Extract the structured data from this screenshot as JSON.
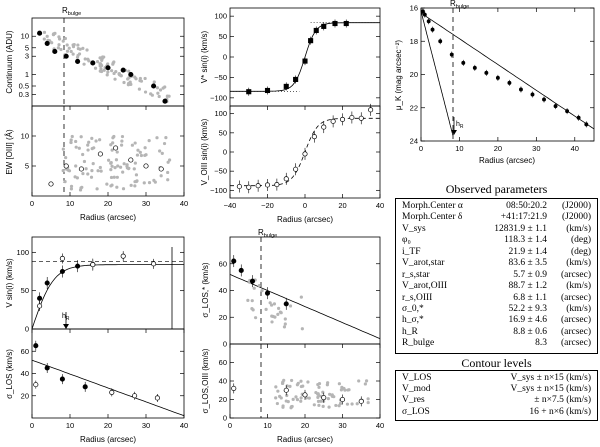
{
  "chart_data": [
    {
      "id": "continuum",
      "type": "scatter",
      "title": "",
      "xlabel": "",
      "ylabel": "Continuum (ADU)",
      "xlim": [
        0,
        40
      ],
      "ylim": [
        0.15,
        30
      ],
      "yscale": "log",
      "ytick_labels": [
        "10",
        "5",
        "3",
        "1",
        "0.5",
        "0.3"
      ],
      "yticks": [
        10,
        5,
        3,
        1,
        0.5,
        0.3
      ],
      "annotation": "R_bulge",
      "annotation_label": "R",
      "annotation_sub": "bulge",
      "marker_x": 8.3,
      "series": [
        {
          "name": "filled",
          "x": [
            2,
            4,
            6,
            9,
            12,
            16,
            20,
            24,
            26,
            32,
            35
          ],
          "y": [
            12,
            6.5,
            4,
            3,
            2.2,
            2,
            1.5,
            1.3,
            1,
            0.5,
            0.2
          ]
        }
      ]
    },
    {
      "id": "ew_oiii",
      "type": "scatter",
      "title": "",
      "xlabel": "Radius (arcsec)",
      "ylabel": "EW [OIII] (Å)",
      "xlim": [
        0,
        40
      ],
      "ylim": [
        0,
        15
      ],
      "yticks": [
        5,
        10
      ],
      "ytick_labels": [
        "5",
        "10"
      ],
      "xticks": [
        0,
        10,
        20,
        30,
        40
      ],
      "xtick_labels": [
        "0",
        "10",
        "20",
        "30",
        "40"
      ],
      "marker_x": 8.3,
      "series": [
        {
          "name": "open",
          "x": [
            5,
            9,
            13,
            18,
            22,
            26,
            30,
            34
          ],
          "y": [
            2,
            5,
            4.5,
            7,
            8,
            6,
            5,
            4.5
          ]
        }
      ]
    },
    {
      "id": "v_star",
      "type": "line",
      "title": "",
      "xlabel": "",
      "ylabel": "V* sin(i) (km/s)",
      "xlim": [
        -40,
        40
      ],
      "ylim": [
        -120,
        120
      ],
      "yticks": [
        -100,
        -50,
        0,
        50,
        100
      ],
      "ytick_labels": [
        "−100",
        "−50",
        "0",
        "50",
        "100"
      ],
      "series": [
        {
          "name": "data",
          "x": [
            -30,
            -20,
            -10,
            -5,
            0,
            3,
            6,
            10,
            16,
            22
          ],
          "y": [
            -85,
            -82,
            -72,
            -55,
            -10,
            40,
            65,
            75,
            82,
            82
          ]
        }
      ]
    },
    {
      "id": "v_oiii",
      "type": "line",
      "title": "",
      "xlabel": "Radius (arcsec)",
      "ylabel": "V_OIII sin(i) (km/s)",
      "xlim": [
        -40,
        40
      ],
      "ylim": [
        -120,
        120
      ],
      "yticks": [
        -100,
        -50,
        0,
        50,
        100
      ],
      "ytick_labels": [
        "−100",
        "−50",
        "0",
        "50",
        "100"
      ],
      "xticks": [
        -40,
        -20,
        0,
        20,
        40
      ],
      "xtick_labels": [
        "−40",
        "−20",
        "0",
        "20",
        "40"
      ],
      "series": [
        {
          "name": "data",
          "x": [
            -35,
            -30,
            -25,
            -20,
            -15,
            -10,
            -5,
            0,
            5,
            10,
            15,
            20,
            25,
            30,
            35
          ],
          "y": [
            -90,
            -92,
            -88,
            -86,
            -85,
            -70,
            -45,
            -5,
            40,
            65,
            80,
            85,
            90,
            88,
            110
          ]
        }
      ]
    },
    {
      "id": "surface_brightness",
      "type": "line",
      "title": "",
      "xlabel": "Radius (arcsec)",
      "ylabel": "μ_K (mag arcsec⁻²)",
      "xlim": [
        0,
        45
      ],
      "ylim": [
        24,
        16
      ],
      "yticks": [
        16,
        18,
        20,
        22,
        24
      ],
      "ytick_labels": [
        "16",
        "18",
        "20",
        "22",
        "24"
      ],
      "xticks": [
        0,
        10,
        20,
        30,
        40
      ],
      "xtick_labels": [
        "0",
        "10",
        "20",
        "30",
        "40"
      ],
      "annotation_label": "R",
      "annotation_sub": "bulge",
      "hr_label": "h",
      "hr_sub": "R",
      "marker_x": 8.3,
      "series": [
        {
          "name": "data",
          "x": [
            0.5,
            1,
            2,
            3,
            5,
            8,
            11,
            14,
            17,
            20,
            23,
            26,
            29,
            32,
            35,
            38,
            41,
            43
          ],
          "y": [
            16.2,
            16.4,
            16.8,
            17.3,
            18,
            18.8,
            19.3,
            19.6,
            19.9,
            20.2,
            20.5,
            20.9,
            21.2,
            21.5,
            21.9,
            22.2,
            22.6,
            23
          ]
        }
      ]
    },
    {
      "id": "v_rot",
      "type": "line",
      "title": "",
      "xlabel": "",
      "ylabel": "V sin(i) (km/s)",
      "xlim": [
        0,
        40
      ],
      "ylim": [
        0,
        120
      ],
      "yticks": [
        0,
        50,
        100
      ],
      "ytick_labels": [
        "0",
        "50",
        "100"
      ],
      "hr_label": "h",
      "hr_sub": "R",
      "series": [
        {
          "name": "filled",
          "x": [
            2,
            4,
            8,
            12,
            16
          ],
          "y": [
            40,
            60,
            75,
            82,
            84
          ]
        },
        {
          "name": "open",
          "x": [
            2,
            8,
            16,
            24,
            32
          ],
          "y": [
            30,
            92,
            84,
            95,
            85
          ]
        }
      ]
    },
    {
      "id": "sigma_los",
      "type": "scatter",
      "title": "",
      "xlabel": "Radius (arcsec)",
      "ylabel": "σ_LOS (km/s)",
      "xlim": [
        0,
        40
      ],
      "ylim": [
        0,
        80
      ],
      "yticks": [
        20,
        40,
        60
      ],
      "ytick_labels": [
        "20",
        "40",
        "60"
      ],
      "xticks": [
        0,
        10,
        20,
        30,
        40
      ],
      "xtick_labels": [
        "0",
        "10",
        "20",
        "30",
        "40"
      ],
      "series": [
        {
          "name": "filled",
          "x": [
            1,
            4,
            8,
            14
          ],
          "y": [
            65,
            45,
            35,
            28
          ]
        },
        {
          "name": "open",
          "x": [
            1,
            21,
            27,
            33
          ],
          "y": [
            30,
            23,
            20,
            18
          ]
        }
      ]
    },
    {
      "id": "sigma_star",
      "type": "scatter",
      "title": "",
      "xlabel": "",
      "ylabel": "σ_LOS,* (km/s)",
      "xlim": [
        0,
        40
      ],
      "ylim": [
        0,
        80
      ],
      "yticks": [
        0,
        20,
        40,
        60
      ],
      "ytick_labels": [
        "0",
        "20",
        "40",
        "60"
      ],
      "annotation_label": "R",
      "annotation_sub": "bulge",
      "marker_x": 8.3,
      "series": [
        {
          "name": "filled",
          "x": [
            1,
            3,
            6,
            10,
            15
          ],
          "y": [
            62,
            55,
            47,
            38,
            30
          ]
        }
      ]
    },
    {
      "id": "sigma_oiii",
      "type": "scatter",
      "title": "",
      "xlabel": "Radius (arcsec)",
      "ylabel": "σ_LOS,OIII (km/s)",
      "xlim": [
        0,
        40
      ],
      "ylim": [
        0,
        80
      ],
      "yticks": [
        0,
        20,
        40,
        60
      ],
      "ytick_labels": [
        "0",
        "20",
        "40",
        "60"
      ],
      "xticks": [
        0,
        10,
        20,
        30,
        40
      ],
      "xtick_labels": [
        "0",
        "10",
        "20",
        "30",
        "40"
      ],
      "marker_x": 8.3,
      "series": [
        {
          "name": "open",
          "x": [
            1,
            15,
            20,
            25,
            30,
            35
          ],
          "y": [
            32,
            30,
            25,
            22,
            20,
            18
          ]
        }
      ]
    }
  ],
  "observed": {
    "title": "Observed parameters",
    "rows": [
      {
        "name": "Morph.Center α",
        "value": "08:50:20.2",
        "unit": "(J2000)"
      },
      {
        "name": "Morph.Center δ",
        "value": "+41:17:21.9",
        "unit": "(J2000)"
      },
      {
        "name": "V_sys",
        "value": "12831.9 ± 1.1",
        "unit": "(km/s)"
      },
      {
        "name": "φ₀",
        "value": "118.3 ± 1.4",
        "unit": "(deg)"
      },
      {
        "name": "i_TF",
        "value": "21.9 ± 1.4",
        "unit": "(deg)"
      },
      {
        "name": "V_arot,star",
        "value": "83.6 ± 3.5",
        "unit": "(km/s)"
      },
      {
        "name": "r_s,star",
        "value": "5.7 ± 0.9",
        "unit": "(arcsec)"
      },
      {
        "name": "V_arot,OIII",
        "value": "88.7 ± 1.2",
        "unit": "(km/s)"
      },
      {
        "name": "r_s,OIII",
        "value": "6.8 ± 1.1",
        "unit": "(arcsec)"
      },
      {
        "name": "σ_0,*",
        "value": "52.2 ± 9.3",
        "unit": "(km/s)"
      },
      {
        "name": "h_σ,*",
        "value": "16.9 ± 4.6",
        "unit": "(arcsec)"
      },
      {
        "name": "h_R",
        "value": "8.8 ± 0.6",
        "unit": "(arcsec)"
      },
      {
        "name": "R_bulge",
        "value": "8.3",
        "unit": "(arcsec)"
      }
    ]
  },
  "contour": {
    "title": "Contour levels",
    "rows": [
      {
        "name": "V_LOS",
        "value": "V_sys ± n×15  (km/s)"
      },
      {
        "name": "V_mod",
        "value": "V_sys ± n×15  (km/s)"
      },
      {
        "name": "V_res",
        "value": "± n×7.5  (km/s)"
      },
      {
        "name": "σ_LOS",
        "value": "16 + n×6  (km/s)"
      }
    ]
  }
}
